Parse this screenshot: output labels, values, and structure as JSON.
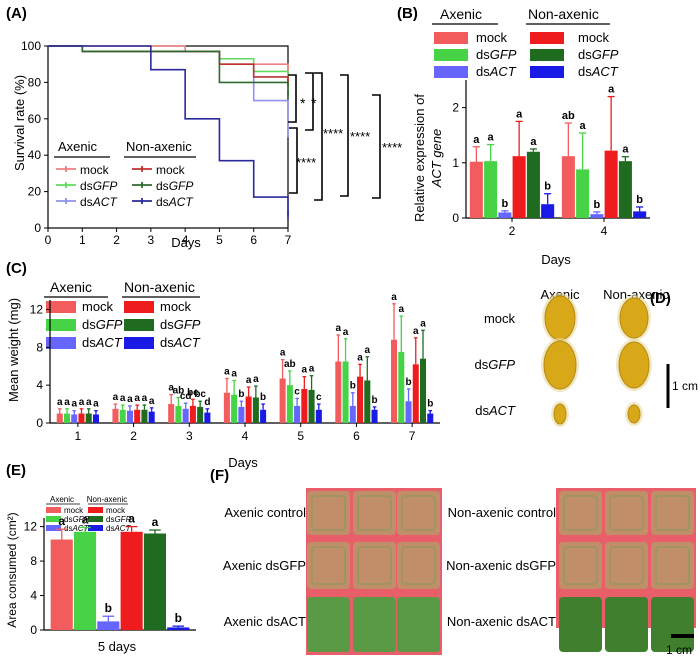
{
  "colors": {
    "axenic_mock": "#f25c5c",
    "axenic_dsgfp": "#46d446",
    "axenic_dsact": "#6666ff",
    "nonaxenic_mock": "#ee1c1c",
    "nonaxenic_dsgfp": "#1f6b1f",
    "nonaxenic_dsact": "#1a1ae6",
    "surv_axenic_mock": "#f08080",
    "surv_axenic_dsgfp": "#5fdc5f",
    "surv_axenic_dsact": "#9090ee",
    "surv_nonaxenic_mock": "#c03030",
    "surv_nonaxenic_dsgfp": "#2e6b2e",
    "surv_nonaxenic_dsact": "#2a2a9a"
  },
  "panels": {
    "A": "(A)",
    "B": "(B)",
    "C": "(C)",
    "D": "(D)",
    "E": "(E)",
    "F": "(F)"
  },
  "legend": {
    "axenic": "Axenic",
    "nonaxenic": "Non-axenic",
    "mock": "mock",
    "ds": "ds",
    "gfp": "GFP",
    "act": "ACT"
  },
  "chart_data": [
    {
      "id": "A",
      "type": "line",
      "title": "",
      "xlabel": "Days",
      "ylabel": "Survival rate (%)",
      "xlim": [
        0,
        7
      ],
      "ylim": [
        0,
        100
      ],
      "xticks": [
        "0",
        "1",
        "2",
        "3",
        "4",
        "5",
        "6",
        "7"
      ],
      "yticks": [
        "0",
        "20",
        "40",
        "60",
        "80",
        "100"
      ],
      "series": [
        {
          "name": "Axenic mock",
          "x": [
            0,
            1,
            2,
            3,
            4,
            5,
            6,
            7
          ],
          "y": [
            100,
            100,
            100,
            100,
            97,
            93,
            90,
            87
          ]
        },
        {
          "name": "Axenic dsGFP",
          "x": [
            0,
            1,
            2,
            3,
            4,
            5,
            6,
            7
          ],
          "y": [
            100,
            97,
            97,
            97,
            97,
            93,
            86,
            80
          ]
        },
        {
          "name": "Axenic dsACT",
          "x": [
            0,
            1,
            2,
            3,
            4,
            5,
            6,
            7
          ],
          "y": [
            100,
            97,
            97,
            97,
            97,
            90,
            70,
            52
          ]
        },
        {
          "name": "Non-axenic mock",
          "x": [
            0,
            1,
            2,
            3,
            4,
            5,
            6,
            7
          ],
          "y": [
            100,
            97,
            97,
            97,
            97,
            90,
            83,
            80
          ]
        },
        {
          "name": "Non-axenic dsGFP",
          "x": [
            0,
            1,
            2,
            3,
            4,
            5,
            6,
            7
          ],
          "y": [
            100,
            97,
            97,
            97,
            97,
            80,
            80,
            73
          ]
        },
        {
          "name": "Non-axenic dsACT",
          "x": [
            0,
            1,
            2,
            3,
            4,
            5,
            6,
            7
          ],
          "y": [
            100,
            100,
            100,
            87,
            60,
            37,
            17,
            7
          ]
        }
      ],
      "significance": [
        "*",
        "*",
        "****",
        "****",
        "****",
        "****"
      ]
    },
    {
      "id": "B",
      "type": "bar",
      "xlabel": "Days",
      "ylabel_line1": "Relative expression of",
      "ylabel_line2": "ACT gene",
      "ylim": [
        0,
        2.5
      ],
      "yticks": [
        "0",
        "1",
        "2"
      ],
      "categories": [
        "2",
        "4"
      ],
      "series": [
        {
          "name": "Axenic mock",
          "values": [
            1.02,
            1.12
          ],
          "errors": [
            0.27,
            0.6
          ],
          "letters": [
            "a",
            "ab"
          ]
        },
        {
          "name": "Axenic dsGFP",
          "values": [
            1.03,
            0.88
          ],
          "errors": [
            0.3,
            0.66
          ],
          "letters": [
            "a",
            "a"
          ]
        },
        {
          "name": "Axenic dsACT",
          "values": [
            0.1,
            0.07
          ],
          "errors": [
            0.03,
            0.04
          ],
          "letters": [
            "b",
            "b"
          ]
        },
        {
          "name": "Non-axenic mock",
          "values": [
            1.12,
            1.22
          ],
          "errors": [
            0.63,
            0.98
          ],
          "letters": [
            "a",
            "a"
          ]
        },
        {
          "name": "Non-axenic dsGFP",
          "values": [
            1.2,
            1.03
          ],
          "errors": [
            0.05,
            0.08
          ],
          "letters": [
            "a",
            "a"
          ]
        },
        {
          "name": "Non-axenic dsACT",
          "values": [
            0.25,
            0.12
          ],
          "errors": [
            0.19,
            0.08
          ],
          "letters": [
            "b",
            "b"
          ]
        }
      ]
    },
    {
      "id": "C",
      "type": "bar",
      "xlabel": "Days",
      "ylabel": "Mean weight (mg)",
      "ylim": [
        0,
        13
      ],
      "yticks": [
        "0",
        "4",
        "8",
        "12"
      ],
      "categories": [
        "1",
        "2",
        "3",
        "4",
        "5",
        "6",
        "7"
      ],
      "series": [
        {
          "name": "Axenic mock",
          "values": [
            1.0,
            1.5,
            2.0,
            3.2,
            4.7,
            6.5,
            8.8
          ],
          "errors": [
            0.5,
            0.5,
            1.0,
            1.5,
            2.0,
            2.8,
            3.8
          ],
          "letters": [
            "a",
            "a",
            "a",
            "a",
            "a",
            "a",
            "a"
          ]
        },
        {
          "name": "Axenic dsGFP",
          "values": [
            1.0,
            1.4,
            1.8,
            3.0,
            4.0,
            6.5,
            7.5
          ],
          "errors": [
            0.5,
            0.5,
            0.9,
            1.5,
            1.5,
            2.4,
            3.8
          ],
          "letters": [
            "a",
            "a",
            "ab",
            "a",
            "ab",
            "a",
            "a"
          ]
        },
        {
          "name": "Axenic dsACT",
          "values": [
            0.9,
            1.3,
            1.5,
            1.7,
            1.8,
            1.8,
            2.3
          ],
          "errors": [
            0.4,
            0.5,
            0.6,
            0.6,
            0.8,
            1.4,
            1.3
          ],
          "letters": [
            "a",
            "a",
            "cd",
            "b",
            "c",
            "b",
            "b"
          ]
        },
        {
          "name": "Non-axenic mock",
          "values": [
            1.0,
            1.4,
            1.8,
            2.8,
            3.6,
            4.9,
            6.2
          ],
          "errors": [
            0.5,
            0.5,
            0.7,
            1.0,
            1.3,
            1.3,
            2.8
          ],
          "letters": [
            "a",
            "a",
            "bc",
            "a",
            "a",
            "a",
            "a"
          ]
        },
        {
          "name": "Non-axenic dsGFP",
          "values": [
            1.0,
            1.4,
            1.7,
            2.7,
            3.5,
            4.5,
            6.8
          ],
          "errors": [
            0.5,
            0.5,
            0.6,
            1.2,
            1.5,
            2.5,
            3.0
          ],
          "letters": [
            "a",
            "a",
            "bc",
            "a",
            "a",
            "a",
            "a"
          ]
        },
        {
          "name": "Non-axenic dsACT",
          "values": [
            0.9,
            1.2,
            1.1,
            1.4,
            1.4,
            1.4,
            1.0
          ],
          "errors": [
            0.4,
            0.4,
            0.4,
            0.6,
            0.6,
            0.3,
            0.3
          ],
          "letters": [
            "a",
            "a",
            "d",
            "b",
            "c",
            "b",
            "b"
          ]
        }
      ]
    },
    {
      "id": "E",
      "type": "bar",
      "xlabel": "5 days",
      "ylabel": "Area consumed (cm²)",
      "ylim": [
        0,
        13
      ],
      "yticks": [
        "0",
        "4",
        "8",
        "12"
      ],
      "categories": [
        "5 days"
      ],
      "series": [
        {
          "name": "Axenic mock",
          "values": [
            10.5
          ],
          "errors": [
            1.2
          ],
          "letters": [
            "a"
          ]
        },
        {
          "name": "Axenic dsGFP",
          "values": [
            11.4
          ],
          "errors": [
            0.5
          ],
          "letters": [
            "a"
          ]
        },
        {
          "name": "Axenic dsACT",
          "values": [
            1.0
          ],
          "errors": [
            0.6
          ],
          "letters": [
            "b"
          ]
        },
        {
          "name": "Non-axenic mock",
          "values": [
            11.4
          ],
          "errors": [
            0.6
          ],
          "letters": [
            "a"
          ]
        },
        {
          "name": "Non-axenic dsGFP",
          "values": [
            11.2
          ],
          "errors": [
            0.4
          ],
          "letters": [
            "a"
          ]
        },
        {
          "name": "Non-axenic dsACT",
          "values": [
            0.3
          ],
          "errors": [
            0.15
          ],
          "letters": [
            "b"
          ]
        }
      ]
    }
  ],
  "larvae": {
    "col_axenic": "Axenic",
    "col_nonaxenic": "Non-axenic",
    "rows": [
      "mock",
      "dsGFP",
      "dsACT"
    ],
    "scale": "1 cm"
  },
  "leaves": {
    "left_labels": [
      "Axenic control",
      "Axenic dsGFP",
      "Axenic dsACT"
    ],
    "right_labels": [
      "Non-axenic control",
      "Non-axenic dsGFP",
      "Non-axenic dsACT"
    ],
    "scale": "1 cm"
  }
}
